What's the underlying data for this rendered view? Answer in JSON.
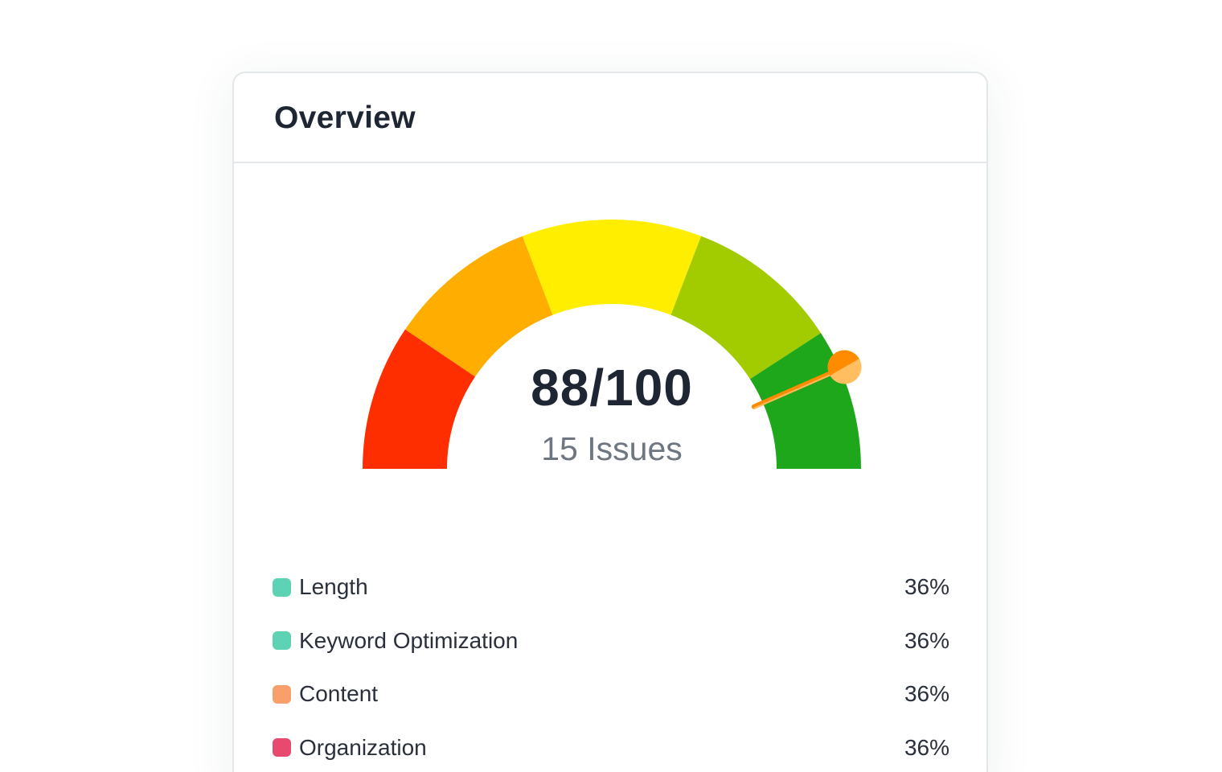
{
  "card": {
    "title": "Overview"
  },
  "gauge": {
    "score_text": "88/100",
    "issues_text": "15 Issues",
    "score": 88,
    "max": 100,
    "segment_colors": [
      "#ff2e00",
      "#ffae00",
      "#ffee00",
      "#a2cb00",
      "#1fa71b"
    ],
    "needle_color": "#ff8c00",
    "needle_knob_color": "#ffbe60"
  },
  "legend": {
    "items": [
      {
        "label": "Length",
        "value": "36%",
        "color": "#5dd3b3"
      },
      {
        "label": "Keyword Optimization",
        "value": "36%",
        "color": "#5dd3b3"
      },
      {
        "label": "Content",
        "value": "36%",
        "color": "#f8a06b"
      },
      {
        "label": "Organization",
        "value": "36%",
        "color": "#e84a6f"
      }
    ]
  }
}
